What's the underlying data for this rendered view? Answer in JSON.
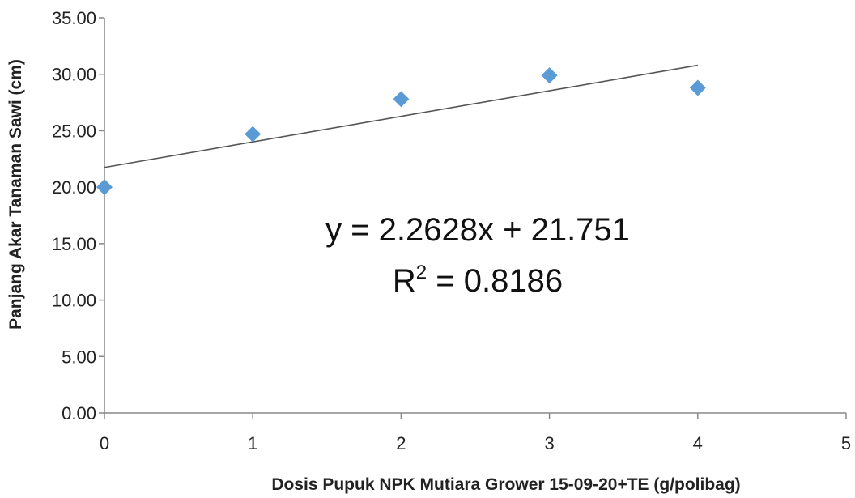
{
  "chart_data": {
    "type": "scatter",
    "title": "",
    "xlabel": "Dosis Pupuk NPK Mutiara Grower 15-09-20+TE (g/polibag)",
    "ylabel": "Panjang Akar Tanaman Sawi (cm)",
    "xlim": [
      0,
      5
    ],
    "ylim": [
      0,
      35
    ],
    "x_ticks": [
      "0",
      "1",
      "2",
      "3",
      "4",
      "5"
    ],
    "y_ticks": [
      "0.00",
      "5.00",
      "10.00",
      "15.00",
      "20.00",
      "25.00",
      "30.00",
      "35.00"
    ],
    "grid": false,
    "legend": "none",
    "marker": "diamond",
    "marker_color": "#5b9bd5",
    "series": [
      {
        "x": [
          0,
          1,
          2,
          3,
          4
        ],
        "y": [
          20.0,
          24.7,
          27.8,
          29.9,
          28.8
        ]
      }
    ],
    "trendline": {
      "type": "linear",
      "slope": 2.2628,
      "intercept": 21.751,
      "x_range": [
        0,
        4
      ],
      "equation": "y = 2.2628x + 21.751",
      "r2_prefix": "R",
      "r2_exp": "2",
      "r2_value": " = 0.8186"
    }
  }
}
